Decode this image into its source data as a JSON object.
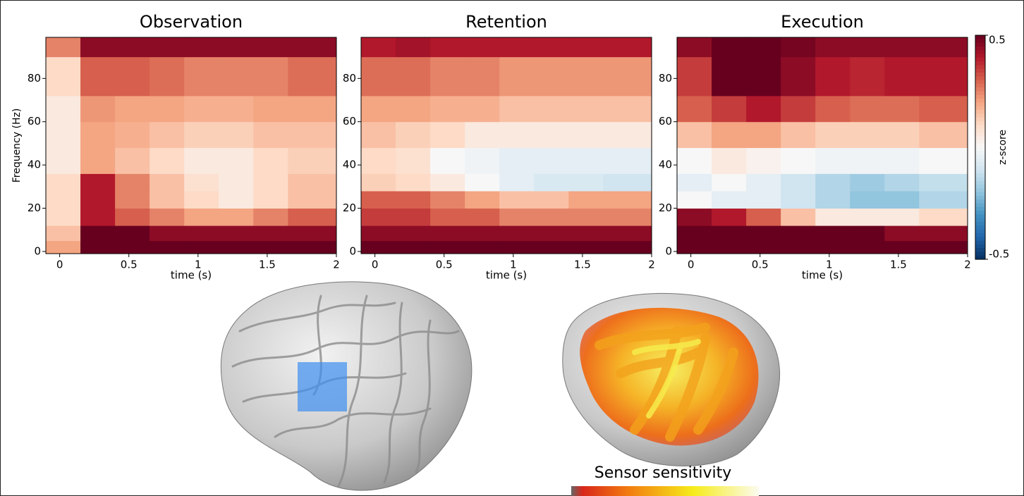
{
  "chart_data": [
    {
      "type": "heatmap",
      "title": "Observation",
      "xlabel": "time (s)",
      "ylabel": "Frequency (Hz)",
      "xbins": [
        -0.1,
        0.15,
        0.4,
        0.65,
        0.9,
        1.15,
        1.4,
        1.65,
        2.0
      ],
      "ybins": [
        -1,
        5,
        12,
        20,
        28,
        36,
        48,
        60,
        72,
        90,
        99
      ],
      "z": [
        [
          0.2,
          0.5,
          0.5,
          0.5,
          0.5,
          0.5,
          0.5,
          0.5
        ],
        [
          0.15,
          0.5,
          0.5,
          0.45,
          0.45,
          0.45,
          0.45,
          0.45
        ],
        [
          0.1,
          0.4,
          0.3,
          0.25,
          0.2,
          0.2,
          0.25,
          0.3
        ],
        [
          0.1,
          0.4,
          0.25,
          0.15,
          0.1,
          0.05,
          0.1,
          0.15
        ],
        [
          0.1,
          0.4,
          0.25,
          0.15,
          0.08,
          0.05,
          0.1,
          0.15
        ],
        [
          0.05,
          0.2,
          0.15,
          0.1,
          0.05,
          0.05,
          0.1,
          0.12
        ],
        [
          0.05,
          0.2,
          0.18,
          0.15,
          0.12,
          0.12,
          0.15,
          0.15
        ],
        [
          0.05,
          0.22,
          0.2,
          0.2,
          0.18,
          0.18,
          0.2,
          0.2
        ],
        [
          0.1,
          0.3,
          0.3,
          0.28,
          0.25,
          0.25,
          0.25,
          0.28
        ],
        [
          0.25,
          0.45,
          0.45,
          0.45,
          0.45,
          0.45,
          0.45,
          0.45
        ]
      ],
      "zlim": [
        -0.5,
        0.5
      ],
      "xlim": [
        -0.1,
        2.0
      ],
      "ylim": [
        -1,
        99
      ],
      "xticks": [
        0,
        0.5,
        1,
        1.5,
        2
      ],
      "yticks": [
        0,
        20,
        40,
        60,
        80
      ]
    },
    {
      "type": "heatmap",
      "title": "Retention",
      "xlabel": "time (s)",
      "xbins": [
        -0.1,
        0.15,
        0.4,
        0.65,
        0.9,
        1.15,
        1.4,
        1.65,
        2.0
      ],
      "ybins": [
        -1,
        5,
        12,
        20,
        28,
        36,
        48,
        60,
        72,
        90,
        99
      ],
      "z": [
        [
          0.5,
          0.5,
          0.5,
          0.5,
          0.5,
          0.5,
          0.5,
          0.5
        ],
        [
          0.45,
          0.45,
          0.45,
          0.45,
          0.45,
          0.45,
          0.45,
          0.45
        ],
        [
          0.35,
          0.35,
          0.3,
          0.3,
          0.25,
          0.25,
          0.25,
          0.25
        ],
        [
          0.3,
          0.3,
          0.25,
          0.2,
          0.15,
          0.15,
          0.2,
          0.2
        ],
        [
          0.12,
          0.1,
          0.05,
          0.0,
          -0.05,
          -0.08,
          -0.08,
          -0.1
        ],
        [
          0.1,
          0.08,
          0.0,
          -0.02,
          -0.05,
          -0.05,
          -0.05,
          -0.05
        ],
        [
          0.15,
          0.12,
          0.1,
          0.05,
          0.05,
          0.05,
          0.05,
          0.05
        ],
        [
          0.2,
          0.2,
          0.18,
          0.18,
          0.15,
          0.15,
          0.15,
          0.15
        ],
        [
          0.28,
          0.28,
          0.25,
          0.25,
          0.22,
          0.22,
          0.22,
          0.22
        ],
        [
          0.4,
          0.42,
          0.4,
          0.4,
          0.4,
          0.4,
          0.4,
          0.4
        ]
      ],
      "zlim": [
        -0.5,
        0.5
      ],
      "xlim": [
        -0.1,
        2.0
      ],
      "ylim": [
        -1,
        99
      ],
      "xticks": [
        0,
        0.5,
        1,
        1.5,
        2
      ],
      "yticks": [
        0,
        20,
        40,
        60,
        80
      ]
    },
    {
      "type": "heatmap",
      "title": "Execution",
      "xlabel": "time (s)",
      "xbins": [
        -0.1,
        0.15,
        0.4,
        0.65,
        0.9,
        1.15,
        1.4,
        1.65,
        2.0
      ],
      "ybins": [
        -1,
        5,
        12,
        20,
        28,
        36,
        48,
        60,
        72,
        90,
        99
      ],
      "z": [
        [
          0.5,
          0.5,
          0.5,
          0.5,
          0.5,
          0.5,
          0.5,
          0.5
        ],
        [
          0.5,
          0.5,
          0.5,
          0.5,
          0.5,
          0.5,
          0.45,
          0.45
        ],
        [
          0.45,
          0.4,
          0.3,
          0.15,
          0.05,
          0.05,
          0.05,
          0.1
        ],
        [
          0.0,
          -0.05,
          -0.05,
          -0.1,
          -0.15,
          -0.2,
          -0.2,
          -0.15
        ],
        [
          -0.05,
          0.0,
          -0.05,
          -0.1,
          -0.15,
          -0.18,
          -0.15,
          -0.12
        ],
        [
          0.0,
          0.05,
          0.02,
          0.0,
          -0.02,
          -0.02,
          -0.02,
          0.0
        ],
        [
          0.15,
          0.2,
          0.2,
          0.15,
          0.12,
          0.12,
          0.12,
          0.15
        ],
        [
          0.3,
          0.35,
          0.4,
          0.35,
          0.3,
          0.28,
          0.28,
          0.3
        ],
        [
          0.35,
          0.5,
          0.5,
          0.45,
          0.4,
          0.38,
          0.4,
          0.4
        ],
        [
          0.45,
          0.5,
          0.5,
          0.48,
          0.45,
          0.45,
          0.45,
          0.45
        ]
      ],
      "zlim": [
        -0.5,
        0.5
      ],
      "xlim": [
        -0.1,
        2.0
      ],
      "ylim": [
        -1,
        99
      ],
      "xticks": [
        0,
        0.5,
        1,
        1.5,
        2
      ],
      "yticks": [
        0,
        20,
        40,
        60,
        80
      ],
      "colorbar": {
        "label": "z-score",
        "ticks": [
          0.5,
          -0.5
        ]
      }
    }
  ],
  "brain_panel": {
    "label": "Sensor sensitivity"
  }
}
